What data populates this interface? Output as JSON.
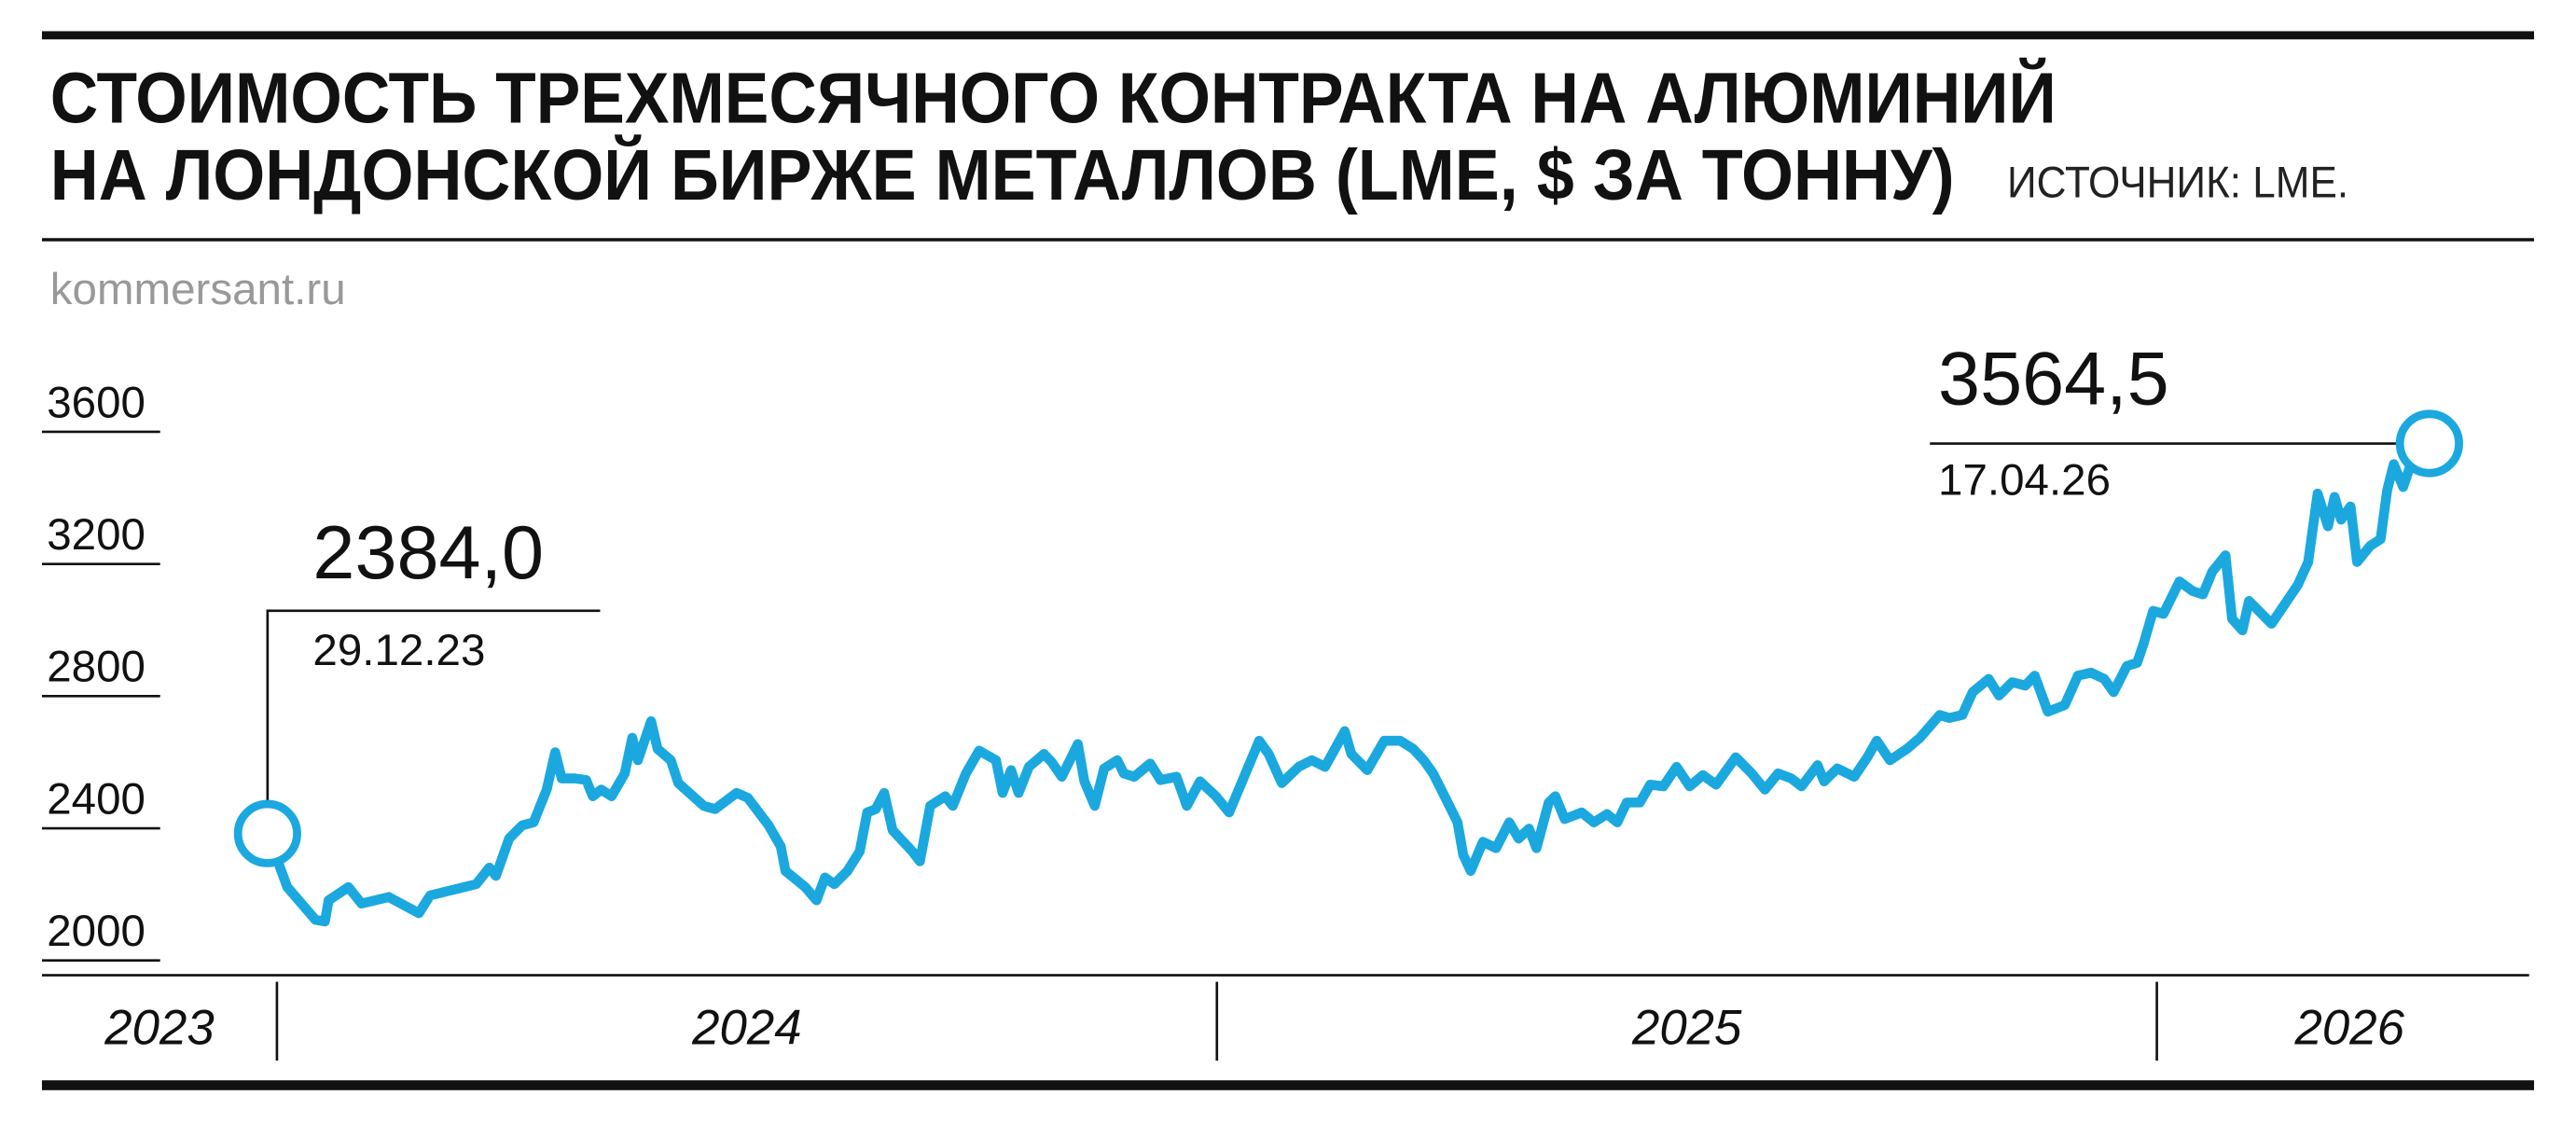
{
  "chart_data": {
    "type": "line",
    "title_lines": [
      "СТОИМОСТЬ ТРЕХМЕСЯЧНОГО КОНТРАКТА НА АЛЮМИНИЙ",
      "НА ЛОНДОНСКОЙ БИРЖЕ МЕТАЛЛОВ (LME, $ ЗА ТОННУ)"
    ],
    "source": "ИСТОЧНИК: LME.",
    "watermark": "kommersant.ru",
    "color": "#1ba8df",
    "x": [
      2023.99,
      2024.011,
      2024.041,
      2024.051,
      2024.055,
      2024.076,
      2024.09,
      2024.119,
      2024.151,
      2024.163,
      2024.212,
      2024.226,
      2024.233,
      2024.247,
      2024.261,
      2024.273,
      2024.287,
      2024.296,
      2024.303,
      2024.317,
      2024.329,
      2024.336,
      2024.345,
      2024.356,
      2024.37,
      2024.378,
      2024.384,
      2024.391,
      2024.398,
      2024.405,
      2024.419,
      2024.427,
      2024.454,
      2024.466,
      2024.489,
      2024.501,
      2024.523,
      2024.536,
      2024.541,
      2024.562,
      2024.574,
      2024.583,
      2024.593,
      2024.607,
      2024.62,
      2024.628,
      2024.637,
      2024.646,
      2024.655,
      2024.676,
      2024.684,
      2024.695,
      2024.711,
      2024.719,
      2024.733,
      2024.747,
      2024.765,
      2024.772,
      2024.781,
      2024.789,
      2024.8,
      2024.816,
      2024.824,
      2024.835,
      2024.852,
      2024.859,
      2024.87,
      2024.88,
      2024.894,
      2024.901,
      2024.912,
      2024.929,
      2024.94,
      2024.957,
      2024.968,
      2024.982,
      2024.999,
      2025.013,
      2025.045,
      2025.055,
      2025.069,
      2025.087,
      2025.101,
      2025.115,
      2025.136,
      2025.143,
      2025.16,
      2025.178,
      2025.195,
      2025.209,
      2025.22,
      2025.23,
      2025.244,
      2025.256,
      2025.262,
      2025.27,
      2025.283,
      2025.297,
      2025.311,
      2025.321,
      2025.332,
      2025.34,
      2025.353,
      2025.36,
      2025.37,
      2025.388,
      2025.401,
      2025.415,
      2025.426,
      2025.436,
      2025.45,
      2025.461,
      2025.475,
      2025.489,
      2025.503,
      2025.517,
      2025.531,
      2025.552,
      2025.569,
      2025.583,
      2025.597,
      2025.611,
      2025.622,
      2025.639,
      2025.646,
      2025.66,
      2025.678,
      2025.692,
      2025.702,
      2025.716,
      2025.734,
      2025.748,
      2025.769,
      2025.779,
      2025.793,
      2025.804,
      2025.821,
      2025.832,
      2025.846,
      2025.86,
      2025.87,
      2025.884,
      2025.902,
      2025.916,
      2025.93,
      2025.944,
      2025.954,
      2025.968,
      2025.979,
      2025.986,
      2025.996,
      2026.007,
      2026.024,
      2026.038,
      2026.049,
      2026.059,
      2026.073,
      2026.08,
      2026.091,
      2026.098,
      2026.122,
      2026.15,
      2026.161,
      2026.171,
      2026.182,
      2026.189,
      2026.196,
      2026.206,
      2026.213,
      2026.227,
      2026.238,
      2026.245,
      2026.252,
      2026.262,
      2026.276,
      2026.29
    ],
    "values": [
      2384.0,
      2222,
      2123,
      2118,
      2182,
      2222,
      2172,
      2192,
      2143,
      2197,
      2231,
      2281,
      2256,
      2369,
      2409,
      2418,
      2517,
      2630,
      2551,
      2551,
      2546,
      2497,
      2517,
      2497,
      2566,
      2674,
      2606,
      2665,
      2724,
      2640,
      2606,
      2537,
      2468,
      2458,
      2507,
      2492,
      2409,
      2345,
      2271,
      2222,
      2182,
      2251,
      2231,
      2271,
      2330,
      2448,
      2458,
      2507,
      2394,
      2330,
      2300,
      2468,
      2497,
      2468,
      2566,
      2635,
      2606,
      2507,
      2576,
      2507,
      2586,
      2625,
      2601,
      2556,
      2655,
      2542,
      2468,
      2581,
      2606,
      2566,
      2556,
      2596,
      2546,
      2556,
      2468,
      2542,
      2497,
      2448,
      2665,
      2625,
      2537,
      2586,
      2606,
      2586,
      2694,
      2625,
      2576,
      2665,
      2665,
      2640,
      2606,
      2566,
      2487,
      2418,
      2320,
      2271,
      2359,
      2340,
      2418,
      2369,
      2399,
      2340,
      2478,
      2497,
      2428,
      2448,
      2418,
      2443,
      2418,
      2478,
      2478,
      2532,
      2527,
      2586,
      2527,
      2561,
      2532,
      2615,
      2566,
      2517,
      2566,
      2551,
      2527,
      2591,
      2542,
      2581,
      2556,
      2615,
      2665,
      2606,
      2640,
      2674,
      2743,
      2734,
      2743,
      2812,
      2852,
      2802,
      2842,
      2832,
      2862,
      2753,
      2773,
      2862,
      2871,
      2852,
      2812,
      2891,
      2901,
      2960,
      3058,
      3049,
      3147,
      3118,
      3108,
      3177,
      3226,
      3034,
      2999,
      3088,
      3019,
      3137,
      3206,
      3413,
      3314,
      3403,
      3334,
      3374,
      3206,
      3255,
      3275,
      3423,
      3502,
      3433,
      3551,
      3564.5
    ],
    "xlim": [
      2023.75,
      2026.41
    ],
    "xticks": [
      2024,
      2025,
      2026
    ],
    "year_labels": [
      "2023",
      "2024",
      "2025",
      "2026"
    ],
    "ylim": [
      2000,
      3600
    ],
    "yticks": [
      2000,
      2400,
      2800,
      3200,
      3600
    ],
    "annotations": [
      {
        "value": 2384.0,
        "label": "2384,0",
        "date": "29.12.23"
      },
      {
        "value": 3564.5,
        "label": "3564,5",
        "date": "17.04.26"
      }
    ]
  }
}
